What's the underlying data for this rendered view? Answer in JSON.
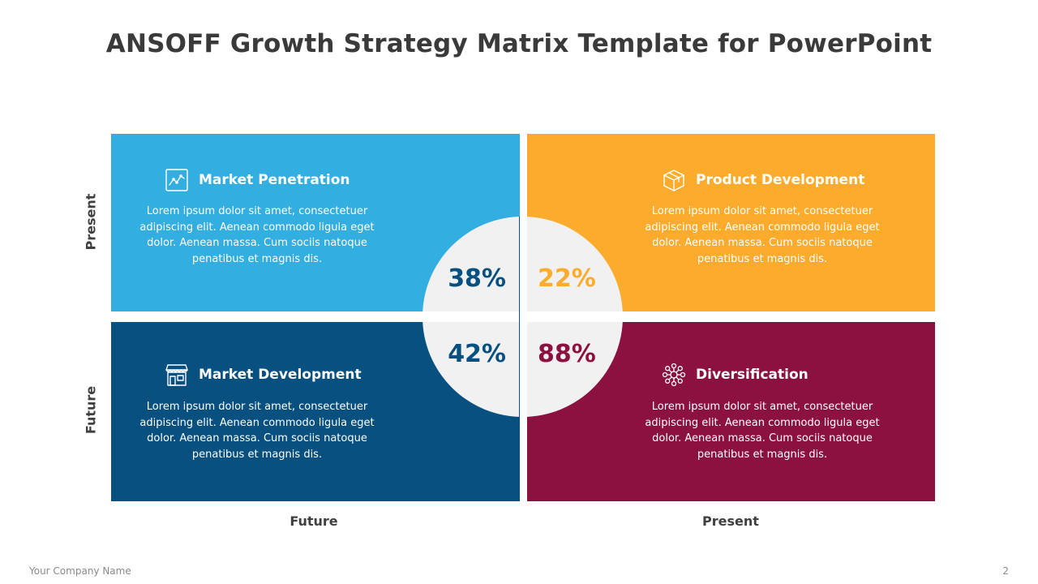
{
  "title": "ANSOFF Growth Strategy Matrix Template for PowerPoint",
  "quadrants": {
    "top_left": {
      "title": "Market Penetration",
      "text": "Lorem ipsum dolor sit amet, consectetuer adipiscing elit. Aenean commodo  ligula eget dolor.  Aenean massa. Cum sociis natoque penatibus et magnis dis.",
      "percent": "38%",
      "icon": "line-chart-icon",
      "color": "#33aee0"
    },
    "top_right": {
      "title": "Product Development",
      "text": "Lorem ipsum dolor sit amet, consectetuer adipiscing elit. Aenean commodo  ligula eget dolor.  Aenean massa. Cum sociis natoque penatibus et magnis dis.",
      "percent": "22%",
      "icon": "box-icon",
      "color": "#fcab2d"
    },
    "bottom_left": {
      "title": "Market Development",
      "text": "Lorem ipsum dolor sit amet, consectetuer adipiscing elit. Aenean commodo  ligula eget dolor.  Aenean massa. Cum sociis natoque penatibus et magnis dis.",
      "percent": "42%",
      "icon": "storefront-icon",
      "color": "#07507f"
    },
    "bottom_right": {
      "title": "Diversification",
      "text": "Lorem ipsum dolor sit amet, consectetuer adipiscing elit. Aenean commodo  ligula eget dolor.  Aenean massa. Cum sociis natoque penatibus et magnis dis.",
      "percent": "88%",
      "icon": "network-icon",
      "color": "#8b1240"
    }
  },
  "axes": {
    "x_left": "Future",
    "x_right": "Present",
    "y_top": "Present",
    "y_bottom": "Future"
  },
  "footer": {
    "company": "Your Company  Name",
    "page_number": "2"
  }
}
